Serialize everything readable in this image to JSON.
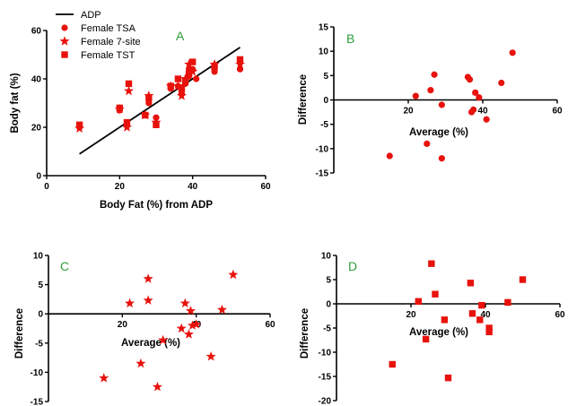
{
  "colors": {
    "marker": "#e8120c",
    "axis": "#000000",
    "panel_letter": "#2e9e3a"
  },
  "chart_data": [
    {
      "panel": "A",
      "type": "scatter",
      "xlabel": "Body Fat (%) from ADP",
      "ylabel": "Body fat (%)",
      "xlim": [
        0,
        60
      ],
      "ylim": [
        0,
        60
      ],
      "xticks": [
        "0",
        "20",
        "40",
        "60"
      ],
      "yticks": [
        "0",
        "20",
        "40",
        "60"
      ],
      "legend": {
        "position": "top-left",
        "entries": [
          {
            "label": "ADP",
            "marker": "line"
          },
          {
            "label": "Female TSA",
            "marker": "circle"
          },
          {
            "label": "Female 7-site",
            "marker": "star"
          },
          {
            "label": "Female TST",
            "marker": "square"
          }
        ]
      },
      "line": {
        "name": "ADP",
        "points": [
          [
            9,
            9
          ],
          [
            53,
            53
          ]
        ]
      },
      "series": [
        {
          "name": "Female TSA",
          "marker": "circle",
          "points": [
            [
              9,
              20
            ],
            [
              20,
              27
            ],
            [
              22,
              21
            ],
            [
              28,
              30
            ],
            [
              30,
              24
            ],
            [
              34,
              36
            ],
            [
              36,
              37
            ],
            [
              37,
              34
            ],
            [
              38,
              38
            ],
            [
              39,
              41
            ],
            [
              39,
              44
            ],
            [
              40,
              44
            ],
            [
              41,
              40
            ],
            [
              46,
              43
            ],
            [
              53,
              44
            ]
          ]
        },
        {
          "name": "Female 7-site",
          "marker": "star",
          "points": [
            [
              9,
              19.5
            ],
            [
              20,
              27.5
            ],
            [
              22,
              20
            ],
            [
              22.5,
              35
            ],
            [
              27,
              25
            ],
            [
              28,
              33
            ],
            [
              30,
              22
            ],
            [
              34,
              37
            ],
            [
              36,
              37
            ],
            [
              37,
              33
            ],
            [
              38,
              40
            ],
            [
              39,
              46
            ],
            [
              40,
              43
            ],
            [
              46,
              46
            ],
            [
              53,
              46
            ]
          ]
        },
        {
          "name": "Female TST",
          "marker": "square",
          "points": [
            [
              9,
              21
            ],
            [
              20,
              28
            ],
            [
              22,
              22
            ],
            [
              22.5,
              38
            ],
            [
              27,
              25
            ],
            [
              28,
              32
            ],
            [
              30,
              21
            ],
            [
              34,
              37
            ],
            [
              36,
              40
            ],
            [
              37,
              36
            ],
            [
              38,
              39
            ],
            [
              39,
              42
            ],
            [
              40,
              47
            ],
            [
              46,
              45
            ],
            [
              53,
              48
            ]
          ]
        }
      ]
    },
    {
      "panel": "B",
      "type": "scatter",
      "xlabel": "Average (%)",
      "ylabel": "Difference",
      "xlim": [
        0,
        60
      ],
      "ylim": [
        -15,
        15
      ],
      "xticks": [
        "20",
        "40",
        "60"
      ],
      "yticks": [
        "15",
        "10",
        "5",
        "0",
        "-5",
        "-10",
        "-15"
      ],
      "series": [
        {
          "marker": "circle",
          "points": [
            [
              15,
              -11.5
            ],
            [
              22,
              0.8
            ],
            [
              25,
              -9
            ],
            [
              26,
              2
            ],
            [
              27,
              5.2
            ],
            [
              29,
              -12
            ],
            [
              29,
              -1
            ],
            [
              36,
              4.7
            ],
            [
              36.5,
              4.2
            ],
            [
              37,
              -2.5
            ],
            [
              37.5,
              -2
            ],
            [
              38,
              1.5
            ],
            [
              39,
              0.5
            ],
            [
              41,
              -4
            ],
            [
              45,
              3.5
            ],
            [
              48,
              9.7
            ]
          ]
        }
      ]
    },
    {
      "panel": "C",
      "type": "scatter",
      "xlabel": "Average (%)",
      "ylabel": "Difference",
      "xlim": [
        0,
        60
      ],
      "ylim": [
        -15,
        10
      ],
      "xticks": [
        "20",
        "40",
        "60"
      ],
      "yticks": [
        "10",
        "5",
        "0",
        "-5",
        "-10",
        "-15"
      ],
      "series": [
        {
          "marker": "star",
          "points": [
            [
              15,
              -11
            ],
            [
              22,
              1.8
            ],
            [
              25,
              -8.5
            ],
            [
              27,
              6
            ],
            [
              27,
              2.3
            ],
            [
              29.5,
              -12.5
            ],
            [
              31,
              -4.5
            ],
            [
              36,
              -2.5
            ],
            [
              37,
              1.8
            ],
            [
              38,
              -3.5
            ],
            [
              38.5,
              0.5
            ],
            [
              39,
              -2
            ],
            [
              40,
              -1.8
            ],
            [
              44,
              -7.3
            ],
            [
              47,
              0.7
            ],
            [
              50,
              6.7
            ]
          ]
        }
      ]
    },
    {
      "panel": "D",
      "type": "scatter",
      "xlabel": "Average (%)",
      "ylabel": "Difference",
      "xlim": [
        0,
        60
      ],
      "ylim": [
        -20,
        10
      ],
      "xticks": [
        "20",
        "40",
        "60"
      ],
      "yticks": [
        "10",
        "5",
        "0",
        "-5",
        "-10",
        "-15",
        "-20"
      ],
      "series": [
        {
          "marker": "square",
          "points": [
            [
              15,
              -12.5
            ],
            [
              22,
              0.5
            ],
            [
              24,
              -7.3
            ],
            [
              25.5,
              8.3
            ],
            [
              26.5,
              2
            ],
            [
              29,
              -3.3
            ],
            [
              30,
              -15.3
            ],
            [
              36,
              4.3
            ],
            [
              36.5,
              -2
            ],
            [
              38.5,
              -3.3
            ],
            [
              39,
              -0.3
            ],
            [
              41,
              -5
            ],
            [
              41,
              -5.8
            ],
            [
              46,
              0.3
            ],
            [
              50,
              5
            ]
          ]
        }
      ]
    }
  ]
}
